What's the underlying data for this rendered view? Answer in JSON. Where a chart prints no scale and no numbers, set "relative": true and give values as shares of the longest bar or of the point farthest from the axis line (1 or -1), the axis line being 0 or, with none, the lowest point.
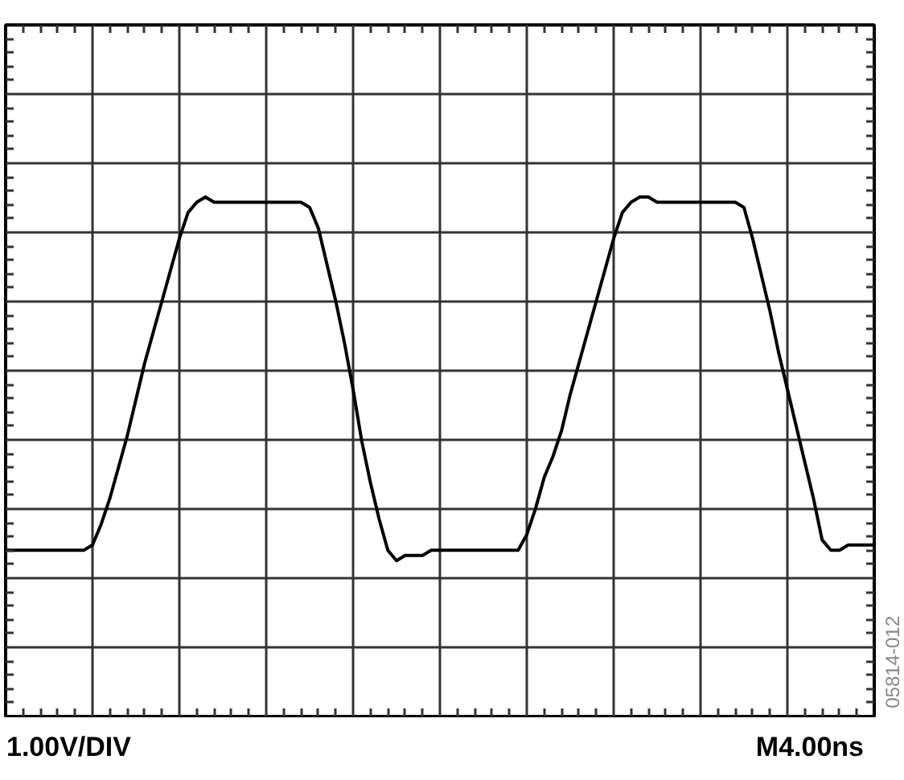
{
  "chart_data": {
    "type": "line",
    "relative": true,
    "grid": true,
    "categories": [
      null,
      null,
      null,
      null,
      null,
      null,
      null,
      null,
      null,
      null,
      null,
      null,
      null,
      null,
      null,
      null,
      null,
      null,
      null,
      null,
      null,
      null,
      null,
      null,
      null,
      null,
      null,
      null,
      null,
      null,
      null,
      null,
      null,
      null,
      null,
      null,
      null,
      null,
      null,
      null,
      null,
      null,
      null,
      null,
      null,
      null,
      null,
      null,
      null,
      null,
      null,
      null,
      null,
      null,
      null,
      null,
      null,
      null,
      null,
      null,
      null,
      null,
      null,
      null,
      null,
      null,
      null,
      null,
      null,
      null,
      null,
      null,
      null,
      null,
      null,
      null,
      null,
      null,
      null,
      null,
      null,
      null,
      null,
      null,
      null,
      null,
      null,
      null,
      null,
      null,
      null,
      null,
      null,
      null,
      null,
      null,
      null,
      null,
      null,
      null,
      null
    ],
    "series": [
      {
        "color": "#000000",
        "values": [
          0.32,
          0.32,
          0.32,
          0.32,
          0.32,
          0.32,
          0.32,
          0.32,
          0.32,
          0.32,
          0.33,
          0.37,
          0.42,
          0.48,
          0.54,
          0.61,
          0.68,
          0.74,
          0.8,
          0.86,
          0.92,
          0.97,
          0.99,
          1,
          0.99,
          0.99,
          0.99,
          0.99,
          0.99,
          0.99,
          0.99,
          0.99,
          0.99,
          0.99,
          0.99,
          0.98,
          0.94,
          0.87,
          0.8,
          0.72,
          0.63,
          0.53,
          0.45,
          0.38,
          0.32,
          0.3,
          0.31,
          0.31,
          0.31,
          0.32,
          0.32,
          0.32,
          0.32,
          0.32,
          0.32,
          0.32,
          0.32,
          0.32,
          0.32,
          0.32,
          0.35,
          0.4,
          0.46,
          0.5,
          0.55,
          0.62,
          0.68,
          0.74,
          0.8,
          0.86,
          0.92,
          0.97,
          0.99,
          1,
          1,
          0.99,
          0.99,
          0.99,
          0.99,
          0.99,
          0.99,
          0.99,
          0.99,
          0.99,
          0.99,
          0.98,
          0.92,
          0.85,
          0.78,
          0.7,
          0.63,
          0.56,
          0.49,
          0.42,
          0.34,
          0.32,
          0.32,
          0.33,
          0.33,
          0.33,
          0.33
        ]
      }
    ],
    "annotations": [
      "1.00V/DIV",
      "M4.00ns",
      "05814-012"
    ]
  }
}
